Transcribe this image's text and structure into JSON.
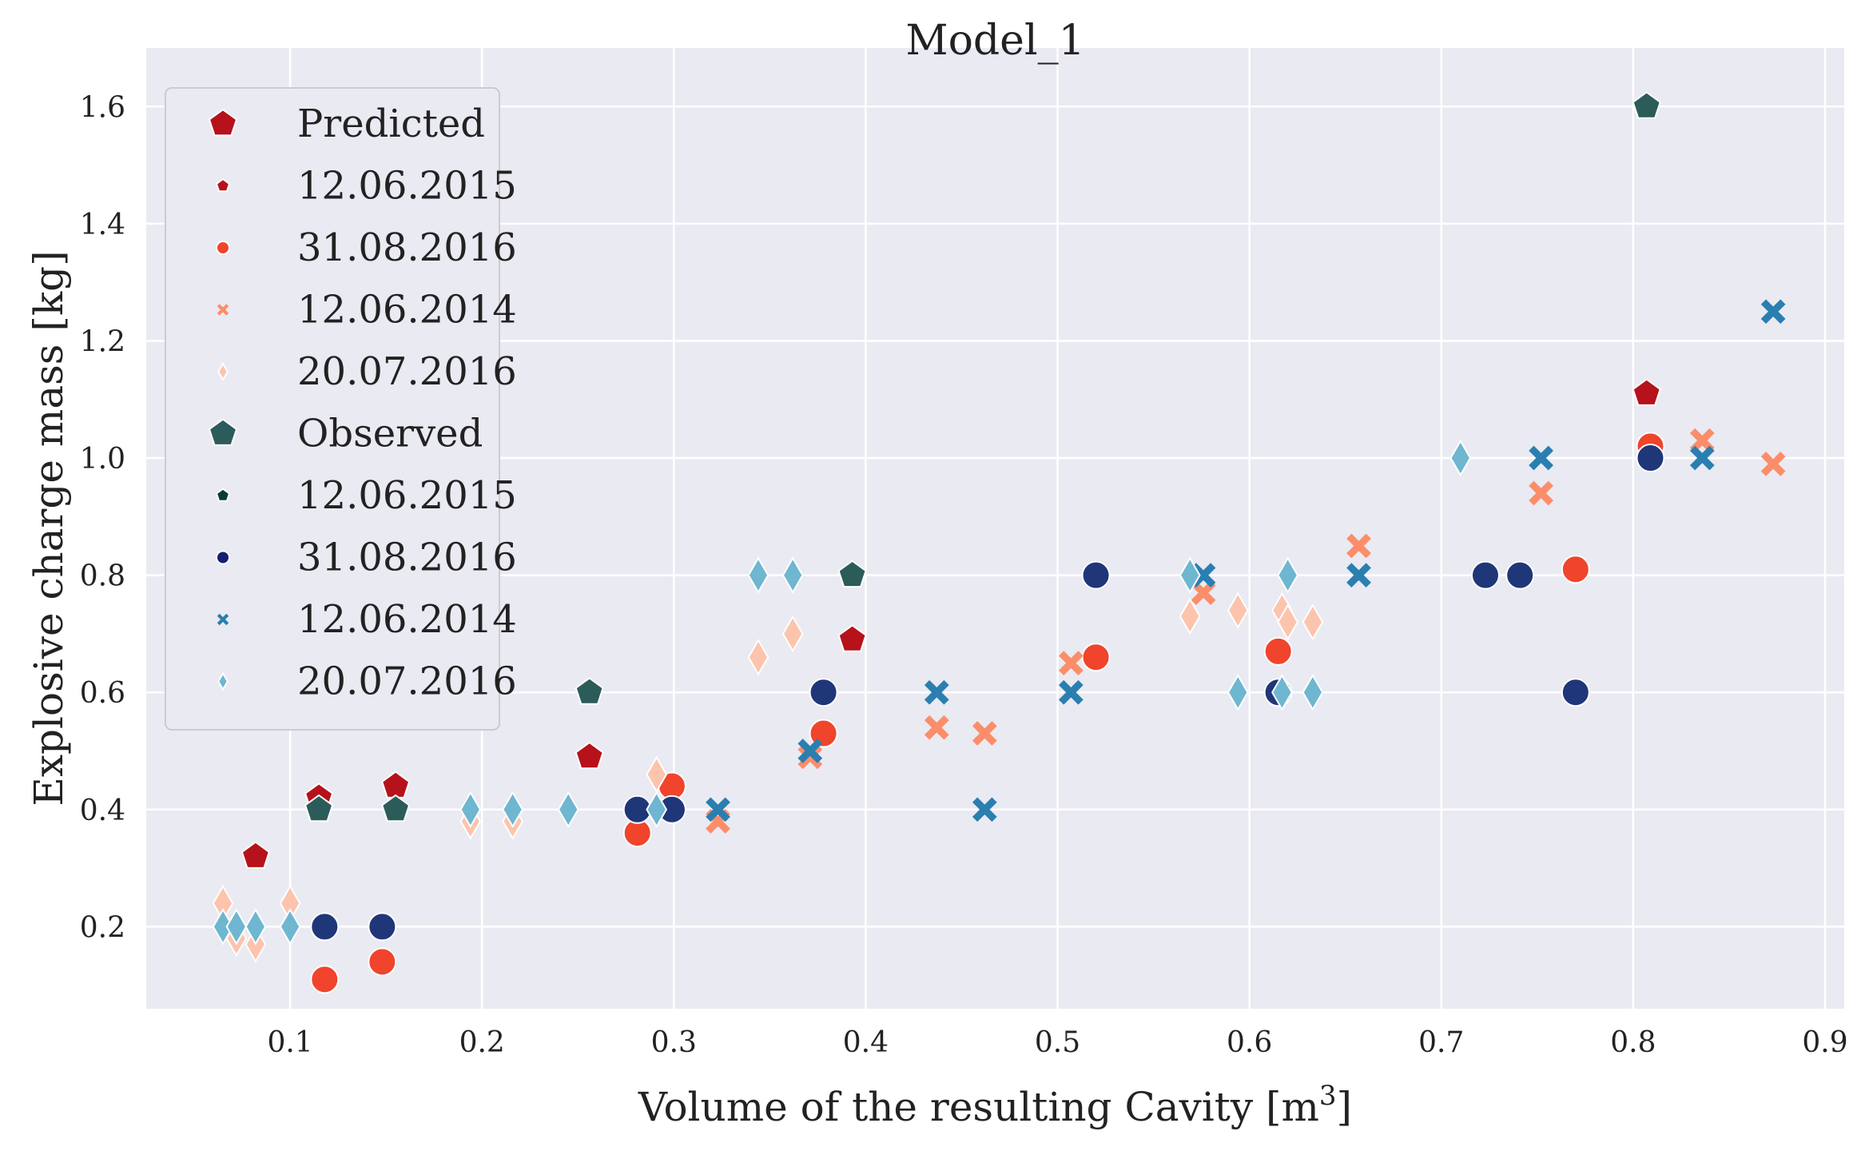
{
  "chart_data": {
    "type": "scatter",
    "title": "Model_1",
    "xlabel": "Volume of the resulting Cavity [m",
    "xlabel_sup": "3",
    "xlabel_end": "]",
    "ylabel": "Explosive charge mass [kg]",
    "xlim": [
      0.025,
      0.91
    ],
    "ylim": [
      0.06,
      1.7
    ],
    "x_ticks": [
      "0.1",
      "0.2",
      "0.3",
      "0.4",
      "0.5",
      "0.6",
      "0.7",
      "0.8",
      "0.9"
    ],
    "y_ticks": [
      "0.2",
      "0.4",
      "0.6",
      "0.8",
      "1.0",
      "1.2",
      "1.4",
      "1.6"
    ],
    "grid": true,
    "legend_position": "top-left",
    "legend": [
      {
        "label": "Predicted",
        "type": "header",
        "color": "#b5121b",
        "marker": "pentagon"
      },
      {
        "label": "12.06.2015",
        "color": "#b5121b",
        "marker": "pentagon"
      },
      {
        "label": "31.08.2016",
        "color": "#f0442c",
        "marker": "circle"
      },
      {
        "label": "12.06.2014",
        "color": "#fc8d6a",
        "marker": "x"
      },
      {
        "label": "20.07.2016",
        "color": "#fcc4ad",
        "marker": "diamond"
      },
      {
        "label": "Observed",
        "type": "header",
        "color": "#2b5c5a",
        "marker": "pentagon"
      },
      {
        "label": "12.06.2015",
        "color": "#0b3d36",
        "marker": "pentagon"
      },
      {
        "label": "31.08.2016",
        "color": "#142070",
        "marker": "circle"
      },
      {
        "label": "12.06.2014",
        "color": "#2a7fb0",
        "marker": "x"
      },
      {
        "label": "20.07.2016",
        "color": "#6fb6d0",
        "marker": "diamond"
      }
    ],
    "series": [
      {
        "group": "Predicted",
        "name": "12.06.2015",
        "color": "#b5121b",
        "marker": "pentagon",
        "x": [
          0.082,
          0.115,
          0.155,
          0.256,
          0.393,
          0.807
        ],
        "y": [
          0.32,
          0.42,
          0.44,
          0.49,
          0.69,
          1.11
        ]
      },
      {
        "group": "Predicted",
        "name": "31.08.2016",
        "color": "#f0442c",
        "marker": "circle",
        "x": [
          0.118,
          0.148,
          0.281,
          0.299,
          0.378,
          0.52,
          0.615,
          0.77,
          0.809
        ],
        "y": [
          0.11,
          0.14,
          0.36,
          0.44,
          0.53,
          0.66,
          0.67,
          0.81,
          1.02
        ]
      },
      {
        "group": "Predicted",
        "name": "12.06.2014",
        "color": "#fc8d6a",
        "marker": "x",
        "x": [
          0.323,
          0.371,
          0.437,
          0.462,
          0.507,
          0.576,
          0.657,
          0.752,
          0.836,
          0.873
        ],
        "y": [
          0.38,
          0.49,
          0.54,
          0.53,
          0.65,
          0.77,
          0.85,
          0.94,
          1.03,
          0.99
        ]
      },
      {
        "group": "Predicted",
        "name": "20.07.2016",
        "color": "#fcc4ad",
        "marker": "diamond",
        "x": [
          0.065,
          0.072,
          0.082,
          0.1,
          0.194,
          0.216,
          0.291,
          0.344,
          0.362,
          0.569,
          0.594,
          0.617,
          0.62,
          0.633,
          0.71
        ],
        "y": [
          0.24,
          0.18,
          0.17,
          0.24,
          0.38,
          0.38,
          0.46,
          0.66,
          0.7,
          0.73,
          0.74,
          0.74,
          0.72,
          0.72,
          1.0
        ]
      },
      {
        "group": "Observed",
        "name": "12.06.2015",
        "color": "#2b5c5a",
        "marker": "pentagon",
        "x": [
          0.115,
          0.155,
          0.256,
          0.393,
          0.807
        ],
        "y": [
          0.4,
          0.4,
          0.6,
          0.8,
          1.6
        ]
      },
      {
        "group": "Observed",
        "name": "31.08.2016",
        "color": "#1f3678",
        "marker": "circle",
        "x": [
          0.118,
          0.148,
          0.281,
          0.299,
          0.378,
          0.52,
          0.615,
          0.723,
          0.741,
          0.77,
          0.809
        ],
        "y": [
          0.2,
          0.2,
          0.4,
          0.4,
          0.6,
          0.8,
          0.6,
          0.8,
          0.8,
          0.6,
          1.0
        ]
      },
      {
        "group": "Observed",
        "name": "12.06.2014",
        "color": "#2a7fb0",
        "marker": "x",
        "x": [
          0.323,
          0.371,
          0.437,
          0.462,
          0.507,
          0.576,
          0.657,
          0.752,
          0.836,
          0.873
        ],
        "y": [
          0.4,
          0.5,
          0.6,
          0.4,
          0.6,
          0.8,
          0.8,
          1.0,
          1.0,
          1.25
        ]
      },
      {
        "group": "Observed",
        "name": "20.07.2016",
        "color": "#6fb6d0",
        "marker": "diamond",
        "x": [
          0.065,
          0.072,
          0.082,
          0.1,
          0.194,
          0.216,
          0.245,
          0.291,
          0.344,
          0.362,
          0.569,
          0.594,
          0.617,
          0.62,
          0.633,
          0.71
        ],
        "y": [
          0.2,
          0.2,
          0.2,
          0.2,
          0.4,
          0.4,
          0.4,
          0.4,
          0.8,
          0.8,
          0.8,
          0.6,
          0.6,
          0.8,
          0.6,
          1.0
        ]
      }
    ],
    "colors": {
      "plot_background": "#eaeaf2",
      "grid": "#ffffff",
      "legend_background": "#eaeaf2",
      "legend_border": "#cccccc"
    }
  }
}
